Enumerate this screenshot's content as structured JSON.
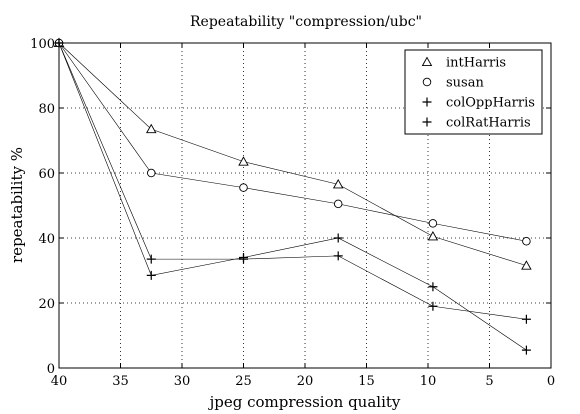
{
  "chart_data": {
    "type": "line",
    "title": "Repeatability \"compression/ubc\"",
    "xlabel": "jpeg compression quality",
    "ylabel": "repeatability %",
    "xlim": [
      40,
      0
    ],
    "ylim": [
      0,
      100
    ],
    "x_reversed": true,
    "xticks": [
      40,
      35,
      30,
      25,
      20,
      15,
      10,
      5,
      0
    ],
    "yticks": [
      0,
      20,
      40,
      60,
      80,
      100
    ],
    "grid": true,
    "grid_style": "dotted",
    "legend_position": "top-right",
    "series": [
      {
        "name": "intHarris",
        "marker": "triangle",
        "x": [
          40,
          32.5,
          25,
          17.3,
          9.6,
          2
        ],
        "y": [
          100,
          73.5,
          63.5,
          56.5,
          40.5,
          31.5
        ]
      },
      {
        "name": "susan",
        "marker": "circle",
        "x": [
          40,
          32.5,
          25,
          17.3,
          9.6,
          2
        ],
        "y": [
          100,
          60,
          55.5,
          50.5,
          44.5,
          39
        ]
      },
      {
        "name": "colOppHarris",
        "marker": "plus",
        "x": [
          40,
          32.5,
          25,
          17.3,
          9.6,
          2
        ],
        "y": [
          100,
          33.5,
          33.5,
          34.5,
          19,
          15
        ]
      },
      {
        "name": "colRatHarris",
        "marker": "plus",
        "x": [
          40,
          32.5,
          25,
          17.3,
          9.6,
          2
        ],
        "y": [
          100,
          28.5,
          34,
          40,
          25,
          5.5
        ]
      }
    ]
  }
}
